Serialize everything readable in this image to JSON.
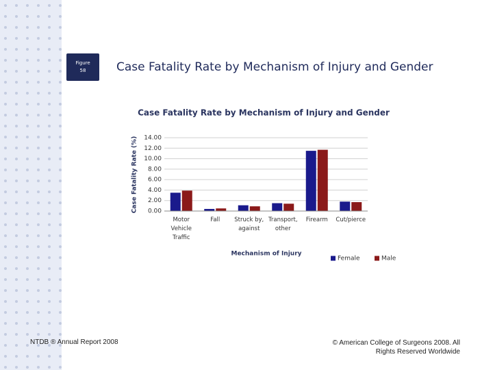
{
  "slide": {
    "figure_label": "Figure 58",
    "title": "Case Fatality Rate by Mechanism of Injury and Gender",
    "footer_left": "NTDB ® Annual Report 2008",
    "footer_right": "© American College of Surgeons 2008. All Rights Reserved Worldwide"
  },
  "chart_data": {
    "type": "bar",
    "title": "Case Fatality Rate by Mechanism of Injury and Gender",
    "x_label": "Mechanism of Injury",
    "y_label": "Case Fatality Rate (%)",
    "categories": [
      "Motor Vehicle Traffic",
      "Fall",
      "Struck by, against",
      "Transport, other",
      "Firearm",
      "Cut/pierce"
    ],
    "series": [
      {
        "name": "Female",
        "color": "#1a1a8c",
        "values": [
          3.5,
          0.4,
          1.1,
          1.5,
          11.5,
          1.8
        ]
      },
      {
        "name": "Male",
        "color": "#8b1a1a",
        "values": [
          3.9,
          0.5,
          0.9,
          1.4,
          11.7,
          1.7
        ]
      }
    ],
    "ylim": [
      0,
      14
    ],
    "yticks": [
      {
        "value": 0,
        "label": "0.00"
      },
      {
        "value": 2,
        "label": "2.00"
      },
      {
        "value": 4,
        "label": "4.00"
      },
      {
        "value": 6,
        "label": "6.00"
      },
      {
        "value": 8,
        "label": "8.00"
      },
      {
        "value": 10,
        "label": "10.00"
      },
      {
        "value": 12,
        "label": "12.00"
      },
      {
        "value": 14,
        "label": "14.00"
      }
    ],
    "grid": true,
    "legend": "bottom-right"
  }
}
